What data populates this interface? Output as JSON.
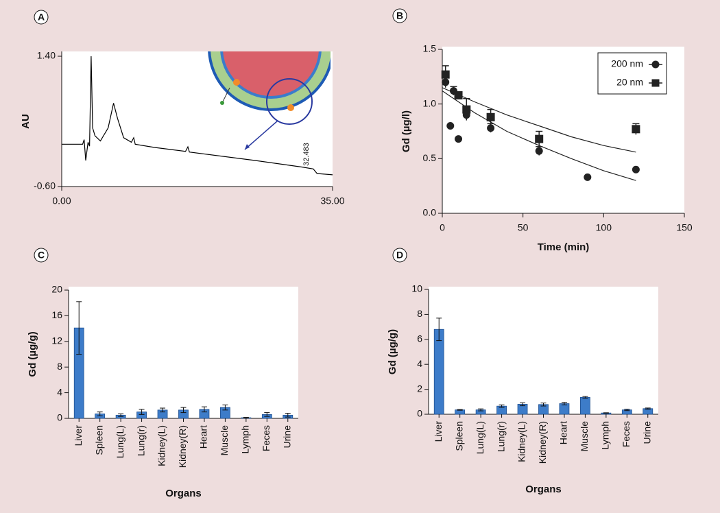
{
  "chart_data": [
    {
      "type": "line",
      "panel_label": "A",
      "ylabel": "AU",
      "annotation": "32.483",
      "color": "#000000",
      "xlim": [
        0,
        35
      ],
      "ylim": [
        -0.6,
        1.4
      ],
      "xticks": [
        {
          "value": 0,
          "label": "0.00"
        },
        {
          "value": 35,
          "label": "35.00"
        }
      ],
      "yticks": [
        {
          "value": -0.6,
          "label": "-0.60"
        },
        {
          "value": 1.4,
          "label": "1.40"
        }
      ],
      "x": [
        0,
        2.7,
        2.9,
        3.1,
        3.4,
        3.6,
        3.8,
        4.0,
        4.3,
        5.0,
        6.0,
        6.7,
        7.2,
        8.0,
        9.0,
        9.3,
        9.5,
        12,
        16,
        16.3,
        16.5,
        25,
        31,
        32.5,
        33,
        35
      ],
      "values": [
        0.05,
        0.05,
        0.12,
        -0.2,
        0.08,
        0.02,
        1.4,
        0.3,
        0.18,
        0.1,
        0.3,
        0.68,
        0.45,
        0.15,
        0.08,
        0.15,
        0.05,
        0.0,
        -0.06,
        0.01,
        -0.07,
        -0.2,
        -0.3,
        -0.33,
        -0.4,
        -0.42
      ]
    },
    {
      "type": "scatter",
      "panel_label": "B",
      "xlabel": "Time (min)",
      "ylabel": "Gd (µg/l)",
      "legend": "upper right",
      "xlim": [
        0,
        150
      ],
      "ylim": [
        0,
        1.5
      ],
      "xticks": [
        0,
        50,
        100,
        150
      ],
      "yticks": [
        {
          "value": 0,
          "label": "0.0"
        },
        {
          "value": 0.5,
          "label": "0.5"
        },
        {
          "value": 1,
          "label": "1.0"
        },
        {
          "value": 1.5,
          "label": "1.5"
        }
      ],
      "series": [
        {
          "name": "200 nm",
          "marker": "circle",
          "color": "#222222",
          "x": [
            2,
            5,
            7,
            10,
            15,
            30,
            60,
            90,
            120
          ],
          "values": [
            1.2,
            0.8,
            1.12,
            0.68,
            0.9,
            0.78,
            0.57,
            0.33,
            0.4
          ],
          "errors": [
            0.05,
            0,
            0.04,
            0,
            0.04,
            0.04,
            0.04,
            0,
            0
          ],
          "fit_x": [
            0,
            20,
            40,
            60,
            80,
            100,
            120
          ],
          "fit_values": [
            1.12,
            0.92,
            0.75,
            0.62,
            0.5,
            0.39,
            0.3
          ]
        },
        {
          "name": "20 nm",
          "marker": "square",
          "color": "#222222",
          "x": [
            2,
            10,
            15,
            30,
            60,
            120
          ],
          "values": [
            1.27,
            1.08,
            0.95,
            0.88,
            0.68,
            0.77
          ],
          "errors": [
            0.08,
            0.03,
            0.1,
            0.07,
            0.07,
            0.05
          ],
          "fit_x": [
            0,
            20,
            40,
            60,
            80,
            100,
            120
          ],
          "fit_values": [
            1.15,
            1.02,
            0.9,
            0.8,
            0.7,
            0.62,
            0.56
          ]
        }
      ]
    },
    {
      "type": "bar",
      "panel_label": "C",
      "xlabel": "Organs",
      "ylabel": "Gd (µg/g)",
      "color": "#3d7cc9",
      "ylim": [
        0,
        20
      ],
      "yticks": [
        0,
        4,
        8,
        12,
        16,
        20
      ],
      "categories": [
        "Liver",
        "Spleen",
        "Lung(L)",
        "Lung(r)",
        "Kidney(L)",
        "Kidney(R)",
        "Heart",
        "Muscle",
        "Lymph",
        "Feces",
        "Urine"
      ],
      "values": [
        14.1,
        0.7,
        0.5,
        1.0,
        1.3,
        1.3,
        1.4,
        1.7,
        0.1,
        0.6,
        0.5
      ],
      "errors": [
        4.1,
        0.3,
        0.2,
        0.4,
        0.3,
        0.4,
        0.4,
        0.4,
        0.05,
        0.3,
        0.3
      ]
    },
    {
      "type": "bar",
      "panel_label": "D",
      "xlabel": "Organs",
      "ylabel": "Gd (µg/g)",
      "color": "#3d7cc9",
      "ylim": [
        0,
        10
      ],
      "yticks": [
        0,
        2,
        4,
        6,
        8,
        10
      ],
      "categories": [
        "Liver",
        "Spleen",
        "Lung(L)",
        "Lung(r)",
        "Kidney(L)",
        "Kidney(R)",
        "Heart",
        "Muscle",
        "Lymph",
        "Feces",
        "Urine"
      ],
      "values": [
        6.8,
        0.35,
        0.35,
        0.65,
        0.8,
        0.78,
        0.85,
        1.35,
        0.1,
        0.35,
        0.45
      ],
      "errors": [
        0.9,
        0.03,
        0.08,
        0.1,
        0.12,
        0.12,
        0.1,
        0.07,
        0.02,
        0.06,
        0.05
      ]
    }
  ]
}
